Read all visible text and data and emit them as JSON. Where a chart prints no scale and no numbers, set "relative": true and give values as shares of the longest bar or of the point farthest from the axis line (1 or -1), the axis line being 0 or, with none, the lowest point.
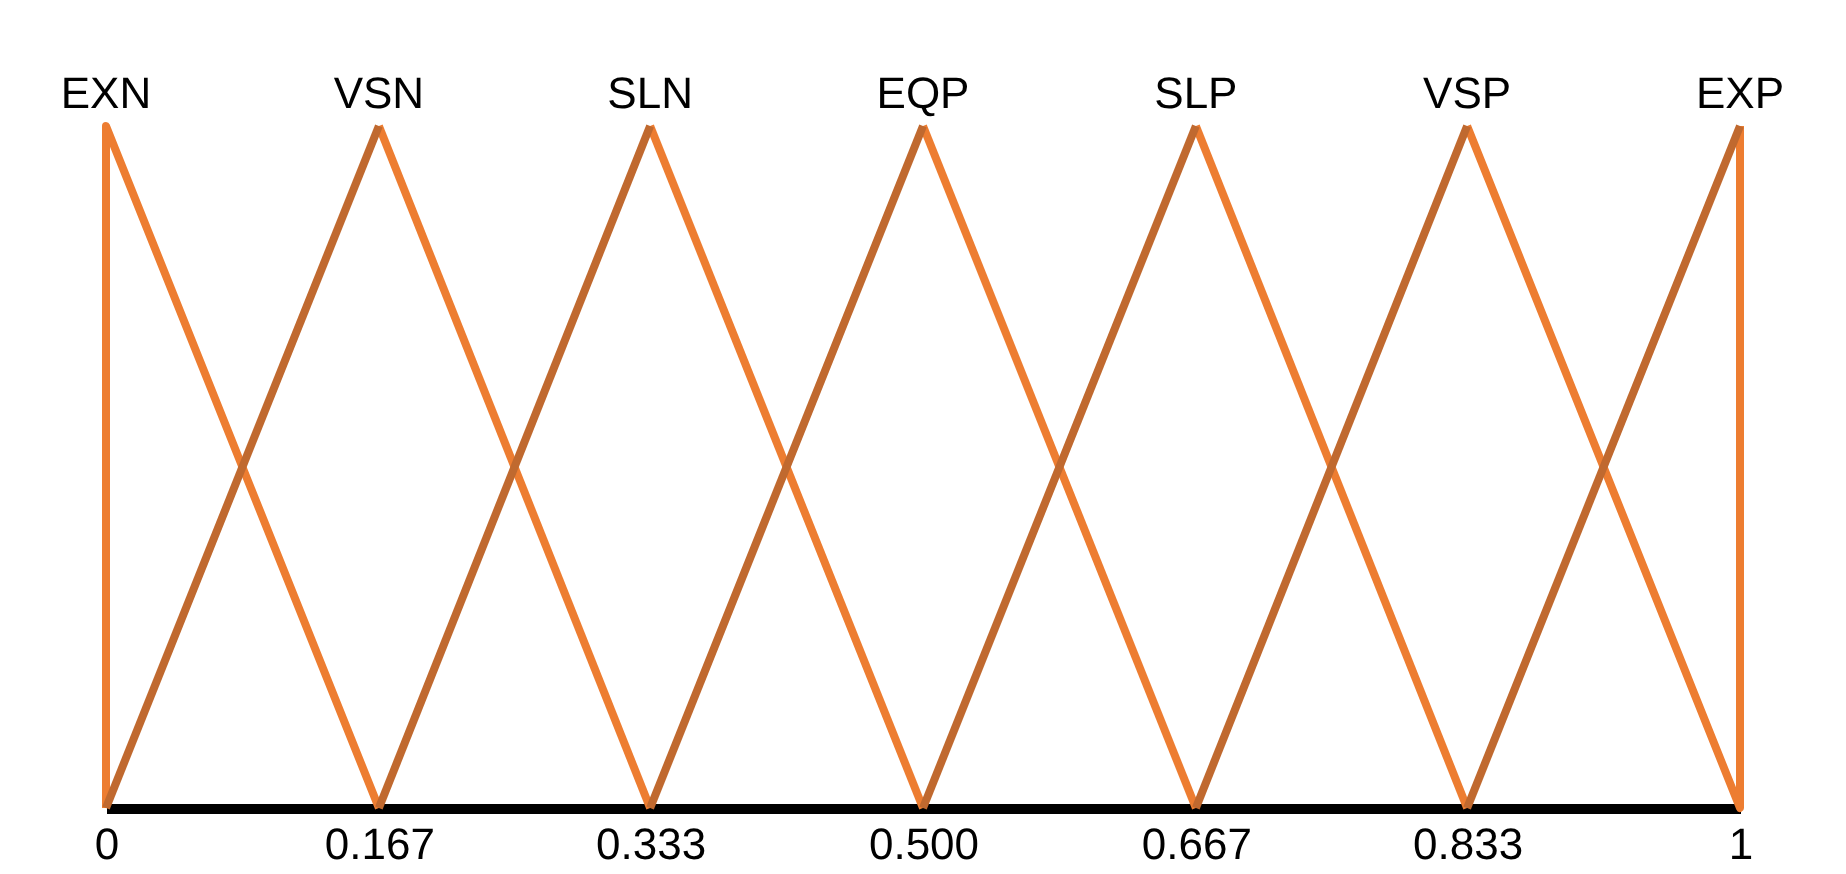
{
  "chart_data": {
    "type": "line",
    "relative": true,
    "xlim": [
      0,
      1
    ],
    "xticks": [
      0,
      0.167,
      0.333,
      {
        "value": 0.5,
        "label": "0.500"
      },
      0.667,
      0.833,
      1
    ],
    "grid": false,
    "marker": "none",
    "line_style": "solid",
    "series": [
      {
        "color": "#ed7d31",
        "x": [
          0,
          0,
          0.167
        ],
        "values": [
          0,
          1,
          0
        ]
      },
      {
        "color": "#ed7d31",
        "x": [
          0.167,
          0.333
        ],
        "values": [
          1,
          0
        ]
      },
      {
        "color": "#ed7d31",
        "x": [
          0.333,
          0.5
        ],
        "values": [
          1,
          0
        ]
      },
      {
        "color": "#ed7d31",
        "x": [
          0.5,
          0.667
        ],
        "values": [
          1,
          0
        ]
      },
      {
        "color": "#ed7d31",
        "x": [
          0.667,
          0.833
        ],
        "values": [
          1,
          0
        ]
      },
      {
        "color": "#ed7d31",
        "x": [
          0.833,
          1,
          1
        ],
        "values": [
          1,
          0,
          1
        ]
      },
      {
        "color": "#c0692f",
        "x": [
          0,
          0.167
        ],
        "values": [
          0,
          1
        ]
      },
      {
        "color": "#c0692f",
        "x": [
          0.167,
          0.333
        ],
        "values": [
          0,
          1
        ]
      },
      {
        "color": "#c0692f",
        "x": [
          0.333,
          0.5
        ],
        "values": [
          0,
          1
        ]
      },
      {
        "color": "#c0692f",
        "x": [
          0.5,
          0.667
        ],
        "values": [
          0,
          1
        ]
      },
      {
        "color": "#c0692f",
        "x": [
          0.667,
          0.833
        ],
        "values": [
          0,
          1
        ]
      },
      {
        "color": "#c0692f",
        "x": [
          0.833,
          1
        ],
        "values": [
          0,
          1
        ]
      }
    ],
    "annotations": [
      {
        "text": "EXN",
        "x": 0,
        "y": 1
      },
      {
        "text": "VSN",
        "x": 0.167,
        "y": 1
      },
      {
        "text": "SLN",
        "x": 0.333,
        "y": 1
      },
      {
        "text": "EQP",
        "x": 0.5,
        "y": 1
      },
      {
        "text": "SLP",
        "x": 0.667,
        "y": 1
      },
      {
        "text": "VSP",
        "x": 0.833,
        "y": 1
      },
      {
        "text": "EXP",
        "x": 1,
        "y": 1
      }
    ]
  }
}
